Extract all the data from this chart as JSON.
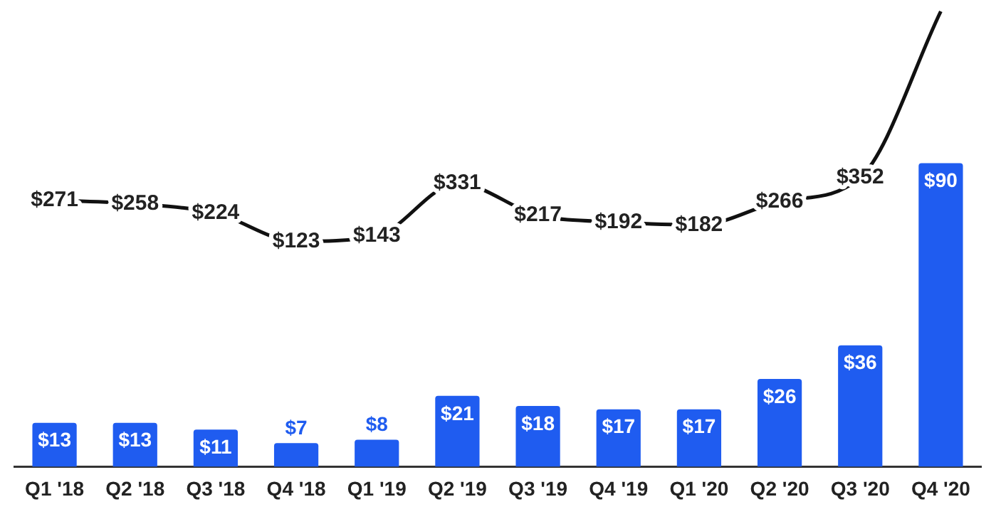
{
  "chart_data": {
    "type": "bar",
    "categories": [
      "Q1 '18",
      "Q2 '18",
      "Q3 '18",
      "Q4 '18",
      "Q1 '19",
      "Q2 '19",
      "Q3 '19",
      "Q4 '19",
      "Q1 '20",
      "Q2 '20",
      "Q3 '20",
      "Q4 '20"
    ],
    "series": [
      {
        "color": "#1f5cf0",
        "values": [
          13,
          13,
          11,
          7,
          8,
          21,
          18,
          17,
          17,
          26,
          36,
          90
        ],
        "value_labels": [
          "$13",
          "$13",
          "$11",
          "$7",
          "$8",
          "$21",
          "$18",
          "$17",
          "$17",
          "$26",
          "$36",
          "$90"
        ]
      },
      {
        "type": "line",
        "axis": "y2",
        "color": "#111111",
        "values": [
          271,
          258,
          224,
          123,
          143,
          331,
          217,
          192,
          182,
          266,
          352,
          950
        ],
        "value_labels": [
          "$271",
          "$258",
          "$224",
          "$123",
          "$143",
          "$331",
          "$217",
          "$192",
          "$182",
          "$266",
          "$352",
          null
        ]
      }
    ],
    "tick_labels": "x",
    "legend": false,
    "grid": false,
    "marker": "none"
  }
}
